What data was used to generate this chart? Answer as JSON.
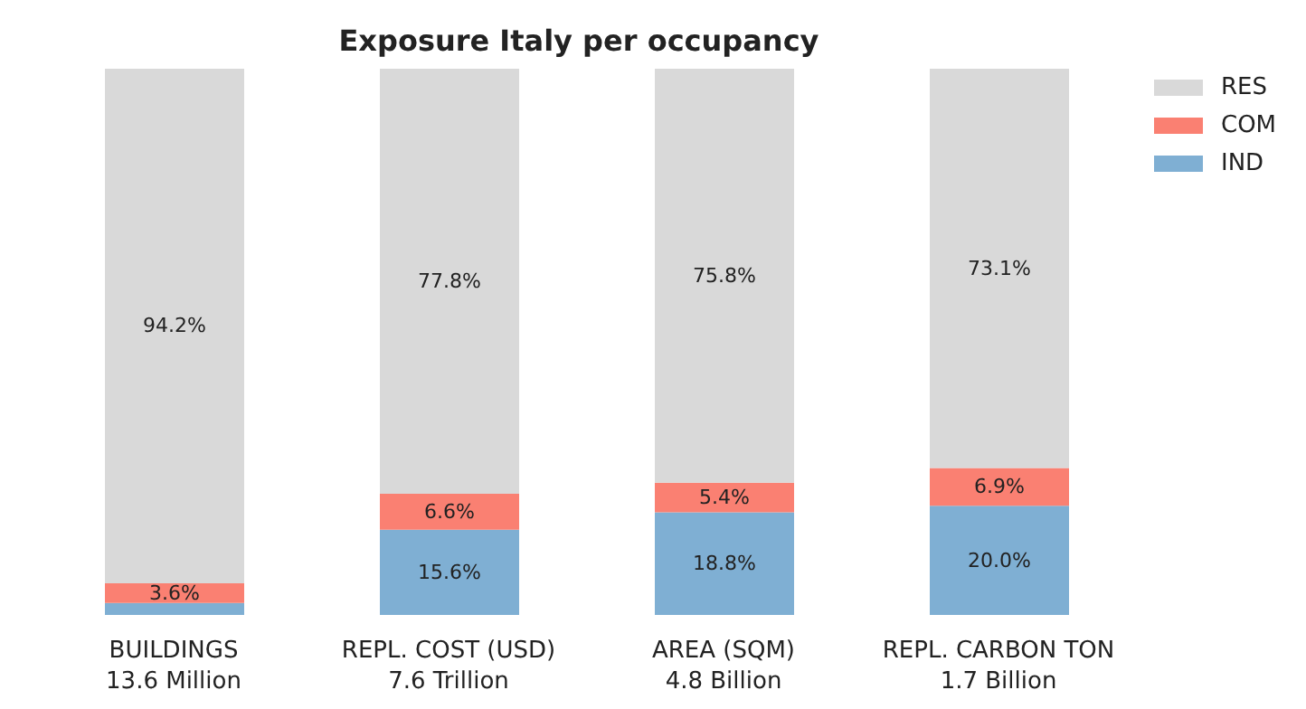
{
  "chart_data": {
    "type": "bar",
    "title": "Exposure Italy per occupancy",
    "stacked": true,
    "categories": [
      "BUILDINGS\n13.6 Million",
      "REPL. COST (USD)\n7.6 Trillion",
      "AREA (SQM)\n4.8 Billion",
      "REPL. CARBON TON\n1.7 Billion"
    ],
    "series": [
      {
        "name": "IND",
        "color": "#7fafd3",
        "values": [
          2.2,
          15.6,
          18.8,
          20.0
        ],
        "value_labels": [
          null,
          "15.6%",
          "18.8%",
          "20.0%"
        ]
      },
      {
        "name": "COM",
        "color": "#fa8072",
        "values": [
          3.6,
          6.6,
          5.4,
          6.9
        ],
        "value_labels": [
          "3.6%",
          "6.6%",
          "5.4%",
          "6.9%"
        ]
      },
      {
        "name": "RES",
        "color": "#d9d9d9",
        "values": [
          94.2,
          77.8,
          75.8,
          73.1
        ],
        "value_labels": [
          "94.2%",
          "77.8%",
          "75.8%",
          "73.1%"
        ]
      }
    ],
    "ylim": [
      0,
      100
    ],
    "tick_labels": "x",
    "legend": "top right"
  }
}
